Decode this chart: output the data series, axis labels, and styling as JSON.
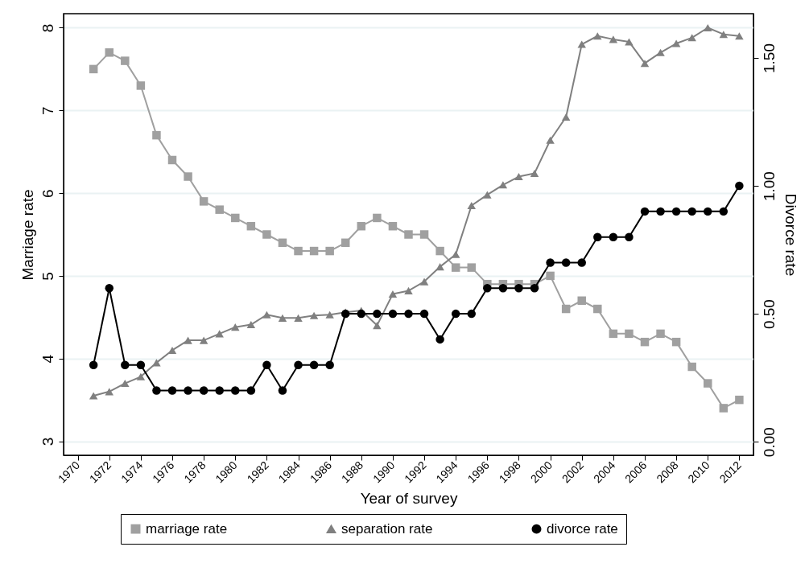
{
  "chart_data": {
    "type": "line",
    "xlabel": "Year of survey",
    "ylabel": "Marriage rate",
    "y2label": "Divorce rate",
    "x": [
      1971,
      1972,
      1973,
      1974,
      1975,
      1976,
      1977,
      1978,
      1979,
      1980,
      1981,
      1982,
      1983,
      1984,
      1985,
      1986,
      1987,
      1988,
      1989,
      1990,
      1991,
      1992,
      1993,
      1994,
      1995,
      1996,
      1997,
      1998,
      1999,
      2000,
      2001,
      2002,
      2003,
      2004,
      2005,
      2006,
      2007,
      2008,
      2009,
      2010,
      2011,
      2012
    ],
    "series": [
      {
        "name": "marriage rate",
        "color": "#a0a0a0",
        "marker": "square",
        "values": [
          7.5,
          7.7,
          7.6,
          7.3,
          6.7,
          6.4,
          6.2,
          5.9,
          5.8,
          5.7,
          5.6,
          5.5,
          5.4,
          5.3,
          5.3,
          5.3,
          5.4,
          5.6,
          5.7,
          5.6,
          5.5,
          5.5,
          5.3,
          5.1,
          5.1,
          4.9,
          4.9,
          4.9,
          4.9,
          5.0,
          4.6,
          4.7,
          4.6,
          4.3,
          4.3,
          4.2,
          4.3,
          4.2,
          3.9,
          3.7,
          3.4,
          3.5
        ]
      },
      {
        "name": "separation rate",
        "color": "#808080",
        "marker": "triangle",
        "values": [
          3.55,
          3.6,
          3.7,
          3.78,
          3.95,
          4.1,
          4.22,
          4.22,
          4.3,
          4.38,
          4.41,
          4.53,
          4.49,
          4.49,
          4.52,
          4.53,
          4.56,
          4.58,
          4.4,
          4.78,
          4.82,
          4.93,
          5.11,
          5.26,
          5.85,
          5.98,
          6.1,
          6.2,
          6.24,
          6.64,
          6.92,
          7.8,
          7.9,
          7.86,
          7.83,
          7.57,
          7.7,
          7.81,
          7.88,
          8.0,
          7.92,
          7.9
        ]
      },
      {
        "name": "divorce rate",
        "color": "#000000",
        "marker": "circle",
        "axis": "y2",
        "values": [
          0.3,
          0.6,
          0.3,
          0.3,
          0.2,
          0.2,
          0.2,
          0.2,
          0.2,
          0.2,
          0.2,
          0.3,
          0.2,
          0.3,
          0.3,
          0.3,
          0.5,
          0.5,
          0.5,
          0.5,
          0.5,
          0.5,
          0.4,
          0.5,
          0.5,
          0.6,
          0.6,
          0.6,
          0.6,
          0.7,
          0.7,
          0.7,
          0.8,
          0.8,
          0.8,
          0.9,
          0.9,
          0.9,
          0.9,
          0.9,
          0.9,
          1.0
        ]
      }
    ],
    "xlim": [
      1969.1,
      2012.9
    ],
    "xticks": [
      1970,
      1972,
      1974,
      1976,
      1978,
      1980,
      1982,
      1984,
      1986,
      1988,
      1990,
      1992,
      1994,
      1996,
      1998,
      2000,
      2002,
      2004,
      2006,
      2008,
      2010,
      2012
    ],
    "ylim": [
      2.83,
      8.17
    ],
    "yticks": [
      3,
      4,
      5,
      6,
      7,
      8
    ],
    "y2lim": [
      -0.053,
      1.673
    ],
    "y2ticks": [
      {
        "value": 0,
        "label": "0.00"
      },
      {
        "value": 0.5,
        "label": "0.50"
      },
      {
        "value": 1,
        "label": "1.00"
      },
      {
        "value": 1.5,
        "label": "1.50"
      }
    ],
    "grid": "y",
    "legend": "bottom",
    "line_style": "solid"
  }
}
